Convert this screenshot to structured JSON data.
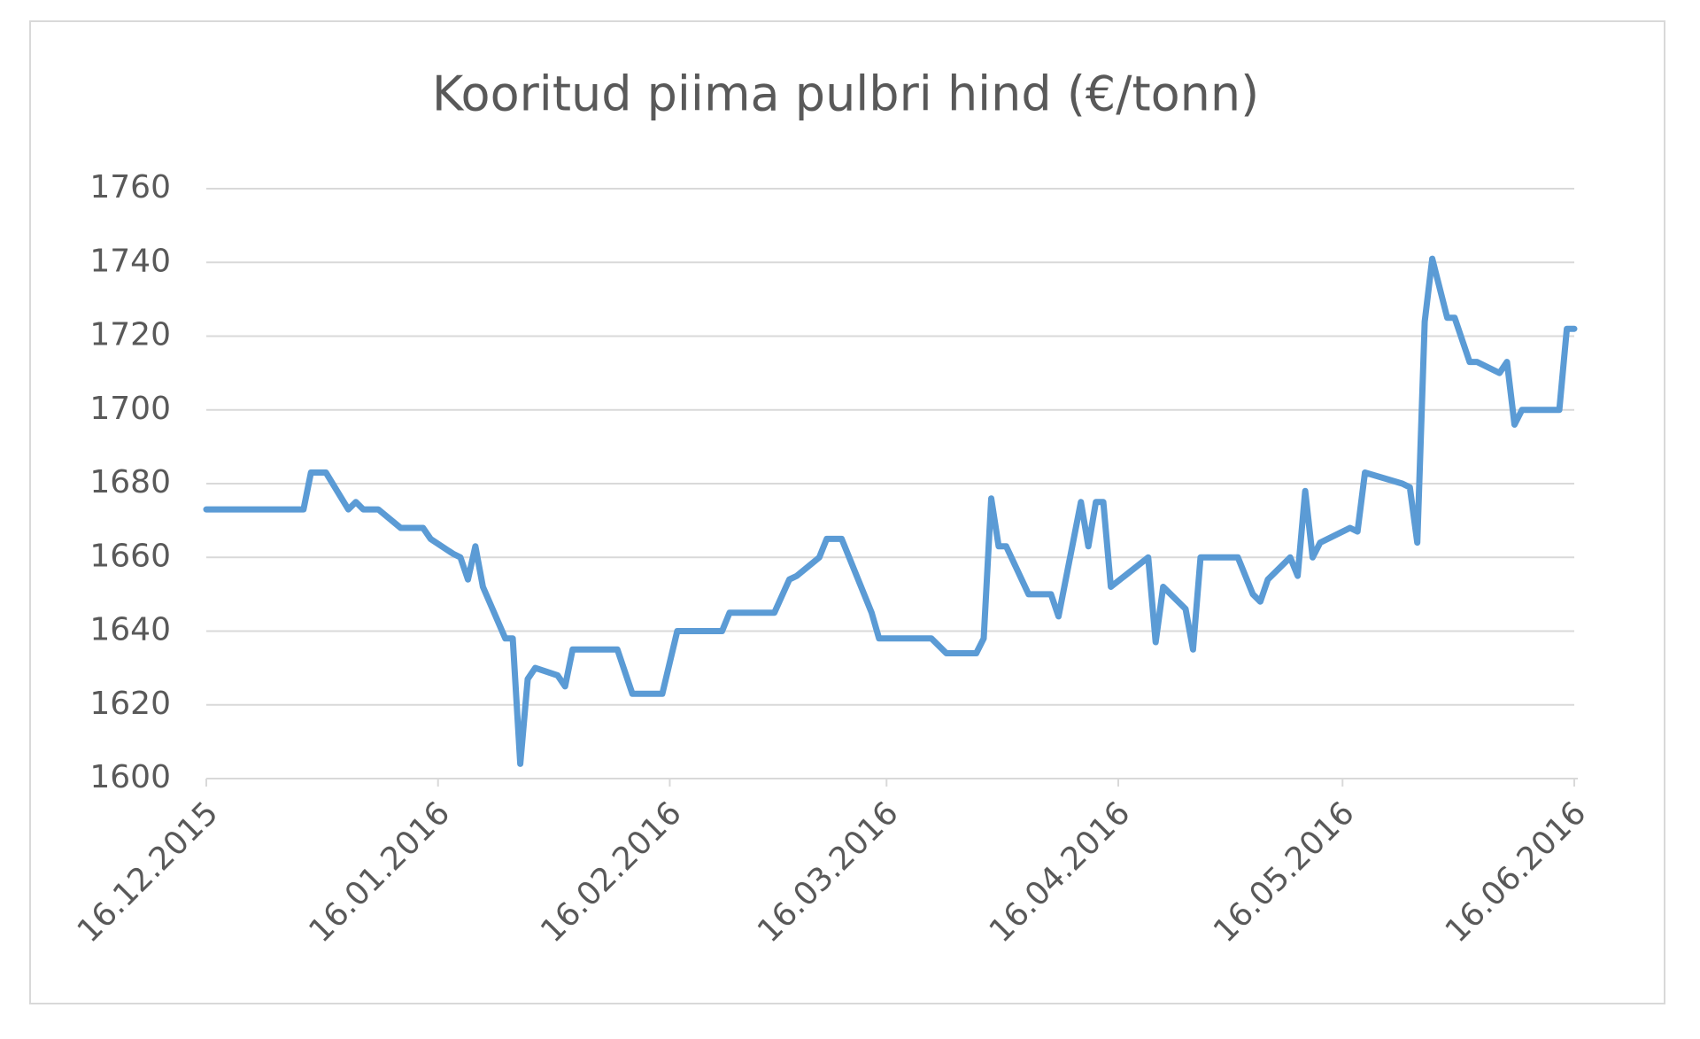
{
  "chart_data": {
    "type": "line",
    "title": "Kooritud piima pulbri hind (€/tonn)",
    "x": [
      "16.12.2015",
      "29.12.2015",
      "30.12.2015",
      "01.01.2016",
      "04.01.2016",
      "05.01.2016",
      "06.01.2016",
      "08.01.2016",
      "11.01.2016",
      "14.01.2016",
      "15.01.2016",
      "18.01.2016",
      "19.01.2016",
      "20.01.2016",
      "21.01.2016",
      "22.01.2016",
      "25.01.2016",
      "26.01.2016",
      "27.01.2016",
      "28.01.2016",
      "29.01.2016",
      "01.02.2016",
      "02.02.2016",
      "03.02.2016",
      "09.02.2016",
      "11.02.2016",
      "15.02.2016",
      "17.02.2016",
      "23.02.2016",
      "24.02.2016",
      "01.03.2016",
      "03.03.2016",
      "04.03.2016",
      "07.03.2016",
      "08.03.2016",
      "10.03.2016",
      "14.03.2016",
      "15.03.2016",
      "22.03.2016",
      "24.03.2016",
      "28.03.2016",
      "29.03.2016",
      "30.03.2016",
      "31.03.2016",
      "01.04.2016",
      "04.04.2016",
      "07.04.2016",
      "08.04.2016",
      "11.04.2016",
      "12.04.2016",
      "13.04.2016",
      "14.04.2016",
      "15.04.2016",
      "20.04.2016",
      "21.04.2016",
      "22.04.2016",
      "25.04.2016",
      "26.04.2016",
      "27.04.2016",
      "02.05.2016",
      "04.05.2016",
      "05.05.2016",
      "06.05.2016",
      "09.05.2016",
      "10.05.2016",
      "11.05.2016",
      "12.05.2016",
      "13.05.2016",
      "17.05.2016",
      "18.05.2016",
      "19.05.2016",
      "24.05.2016",
      "25.05.2016",
      "26.05.2016",
      "27.05.2016",
      "28.05.2016",
      "30.05.2016",
      "31.05.2016",
      "02.06.2016",
      "03.06.2016",
      "06.06.2016",
      "07.06.2016",
      "08.06.2016",
      "09.06.2016",
      "14.06.2016",
      "15.06.2016",
      "16.06.2016"
    ],
    "series": [
      {
        "color": "#5b9bd5",
        "values": [
          1673,
          1673,
          1683,
          1683,
          1673,
          1675,
          1673,
          1673,
          1668,
          1668,
          1665,
          1661,
          1660,
          1654,
          1663,
          1652,
          1638,
          1638,
          1604,
          1627,
          1630,
          1628,
          1625,
          1635,
          1635,
          1623,
          1623,
          1640,
          1640,
          1645,
          1645,
          1654,
          1655,
          1660,
          1665,
          1665,
          1645,
          1638,
          1638,
          1634,
          1634,
          1638,
          1676,
          1663,
          1663,
          1650,
          1650,
          1644,
          1675,
          1663,
          1675,
          1675,
          1652,
          1660,
          1637,
          1652,
          1646,
          1635,
          1660,
          1660,
          1650,
          1648,
          1654,
          1660,
          1655,
          1678,
          1660,
          1664,
          1668,
          1667,
          1683,
          1680,
          1679,
          1664,
          1724,
          1741,
          1725,
          1725,
          1713,
          1713,
          1710,
          1713,
          1696,
          1700,
          1700,
          1722,
          1722
        ]
      }
    ],
    "xlim": [
      "16.12.2015",
      "16.06.2016"
    ],
    "xticks": [
      "16.12.2015",
      "16.01.2016",
      "16.02.2016",
      "16.03.2016",
      "16.04.2016",
      "16.05.2016",
      "16.06.2016"
    ],
    "ylim": [
      1600,
      1760
    ],
    "yticks": [
      1600,
      1620,
      1640,
      1660,
      1680,
      1700,
      1720,
      1740,
      1760
    ],
    "grid": true
  }
}
